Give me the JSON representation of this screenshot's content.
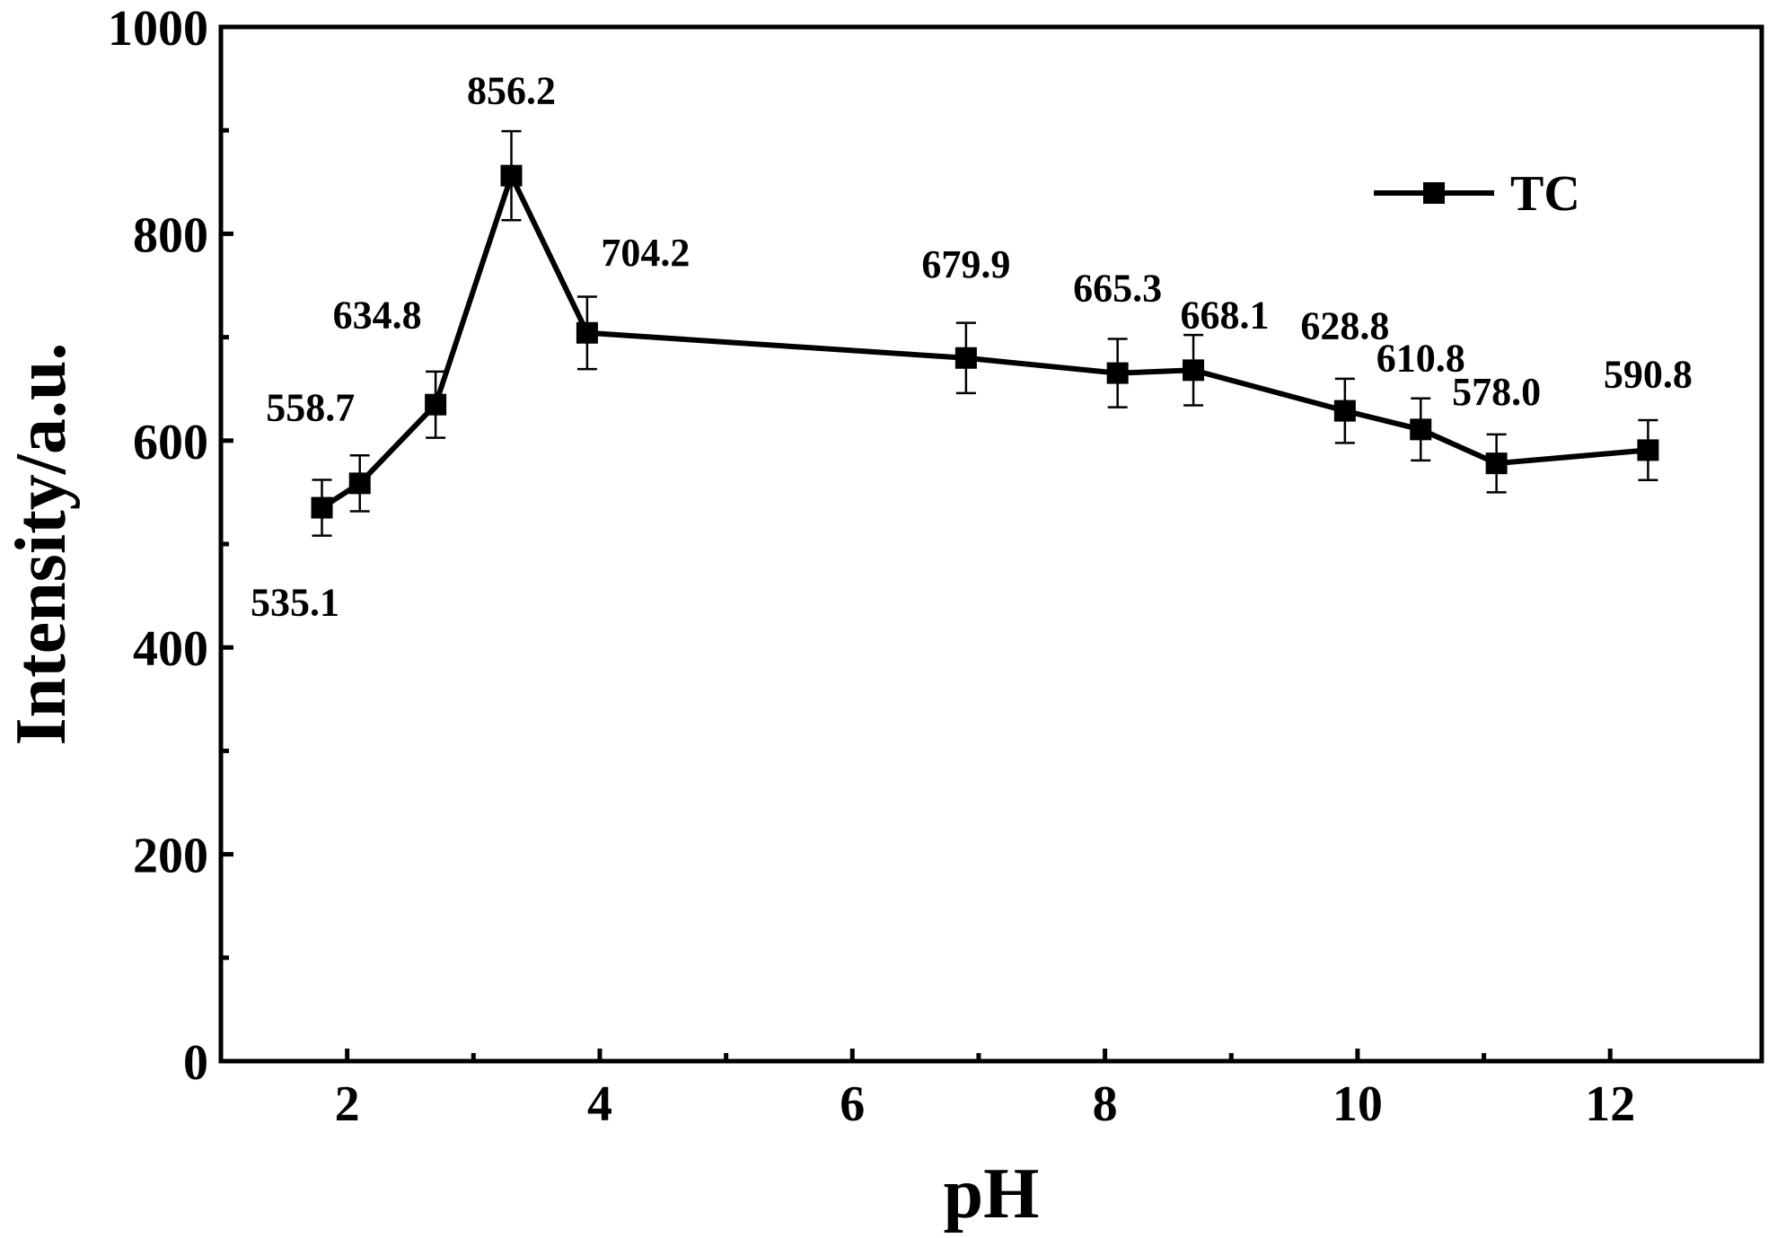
{
  "chart_data": {
    "type": "line",
    "title": "",
    "xlabel": "pH",
    "ylabel": "Intensity/a.u.",
    "xlim": [
      1,
      13.2
    ],
    "ylim": [
      0,
      1000
    ],
    "xticks": [
      2,
      4,
      6,
      8,
      10,
      12
    ],
    "xtick_labels": [
      "2",
      "4",
      "6",
      "8",
      "10",
      "12"
    ],
    "yticks": [
      0,
      200,
      400,
      600,
      800,
      1000
    ],
    "ytick_labels": [
      "0",
      "200",
      "400",
      "600",
      "800",
      "1000"
    ],
    "grid": false,
    "legend_position": "top-right",
    "series": [
      {
        "name": "TC",
        "color": "#000000",
        "marker": "square",
        "x": [
          1.8,
          2.1,
          2.7,
          3.3,
          3.9,
          6.9,
          8.1,
          8.7,
          9.9,
          10.5,
          11.1,
          12.3
        ],
        "values": [
          535.1,
          558.7,
          634.8,
          856.2,
          704.2,
          679.9,
          665.3,
          668.1,
          628.8,
          610.8,
          578.0,
          590.8
        ],
        "error": [
          27,
          27,
          32,
          43,
          35,
          34,
          33,
          34,
          31,
          30,
          28,
          29
        ],
        "data_labels": [
          "535.1",
          "558.7",
          "634.8",
          "856.2",
          "704.2",
          "679.9",
          "665.3",
          "668.1",
          "628.8",
          "610.8",
          "578.0",
          "590.8"
        ]
      }
    ]
  }
}
